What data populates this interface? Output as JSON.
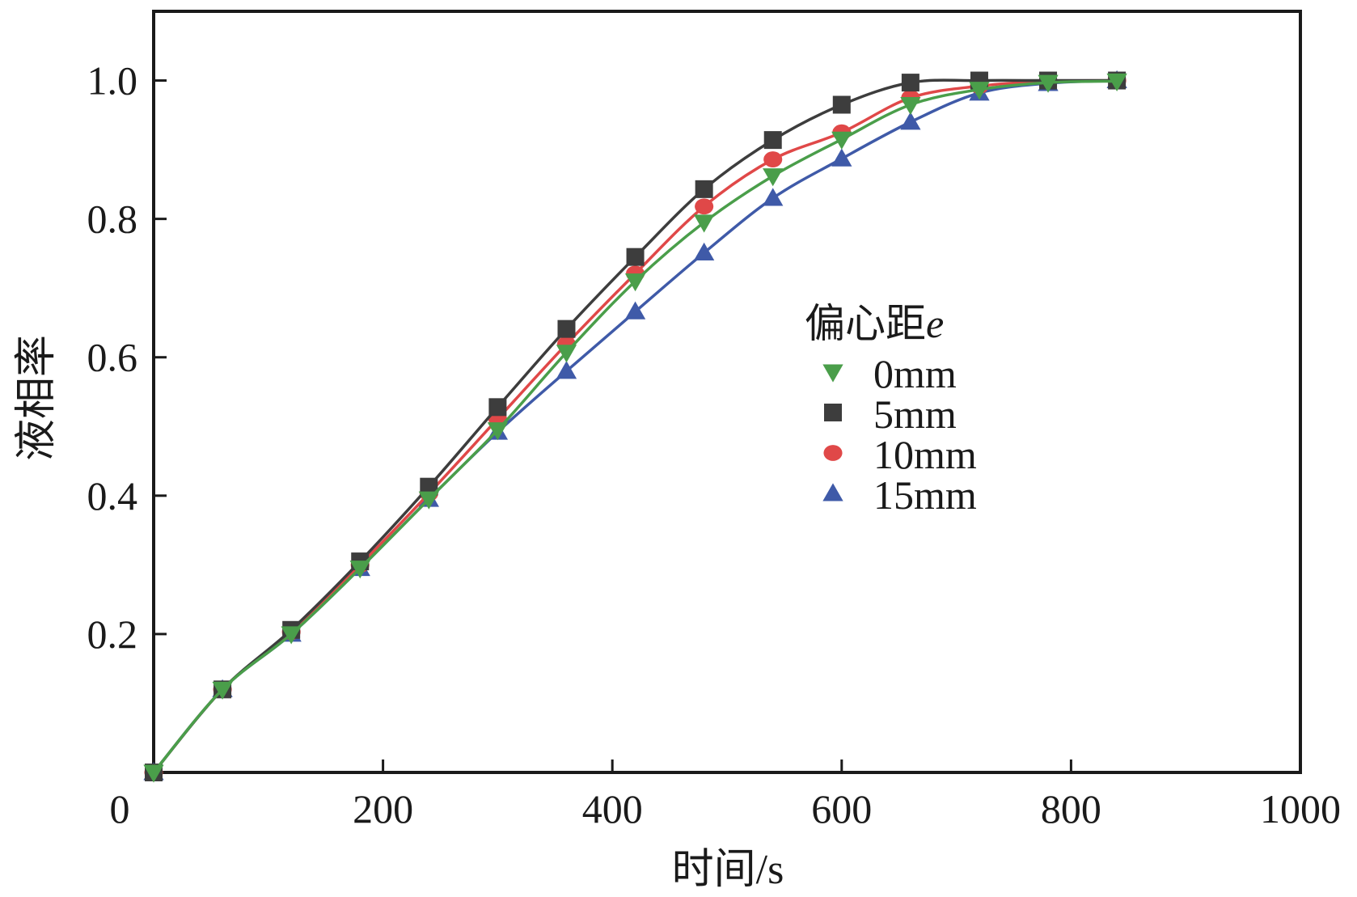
{
  "chart_data": {
    "type": "line",
    "title": "",
    "xlabel": "时间/s",
    "ylabel": "液相率",
    "xlim": [
      0,
      1000
    ],
    "ylim": [
      0,
      1.1
    ],
    "x_ticks": [
      0,
      200,
      400,
      600,
      800,
      1000
    ],
    "x_tick_labels": [
      "0",
      "200",
      "400",
      "600",
      "800",
      "1000"
    ],
    "y_ticks": [
      0.2,
      0.4,
      0.6,
      0.8,
      1.0
    ],
    "y_tick_labels": [
      "0.2",
      "0.4",
      "0.6",
      "0.8",
      "1.0"
    ],
    "grid": false,
    "legend": {
      "title_main": "偏心距",
      "title_var": "e",
      "position": "center-right"
    },
    "x": [
      0,
      60,
      120,
      180,
      240,
      300,
      360,
      420,
      480,
      540,
      600,
      660,
      720,
      780,
      840
    ],
    "series": [
      {
        "name": "0mm",
        "marker": "triangle-down",
        "color": "#4a9e4a",
        "values": [
          0.0,
          0.12,
          0.2,
          0.295,
          0.395,
          0.495,
          0.607,
          0.71,
          0.795,
          0.862,
          0.915,
          0.965,
          0.987,
          0.997,
          0.999
        ]
      },
      {
        "name": "5mm",
        "marker": "square",
        "color": "#3d3d3d",
        "values": [
          0.0,
          0.12,
          0.206,
          0.305,
          0.413,
          0.528,
          0.641,
          0.745,
          0.843,
          0.914,
          0.965,
          0.997,
          1.0,
          1.0,
          1.0
        ]
      },
      {
        "name": "10mm",
        "marker": "circle",
        "color": "#e04848",
        "values": [
          0.0,
          0.12,
          0.203,
          0.3,
          0.403,
          0.511,
          0.619,
          0.721,
          0.818,
          0.886,
          0.925,
          0.975,
          0.992,
          0.999,
          1.0
        ]
      },
      {
        "name": "15mm",
        "marker": "triangle-up",
        "color": "#3f5aa8",
        "values": [
          0.0,
          0.12,
          0.2,
          0.295,
          0.395,
          0.492,
          0.58,
          0.666,
          0.751,
          0.83,
          0.887,
          0.94,
          0.982,
          0.996,
          1.0
        ]
      }
    ]
  }
}
